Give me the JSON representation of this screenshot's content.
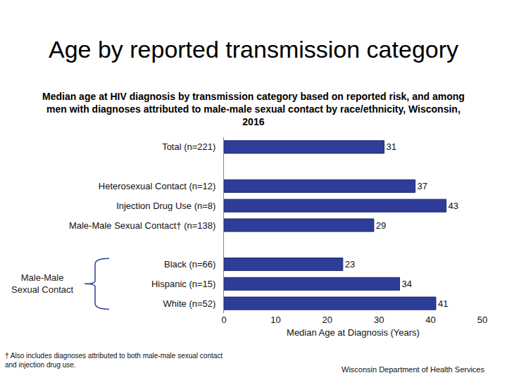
{
  "chart_data": {
    "type": "bar",
    "orientation": "horizontal",
    "title": "Age by reported transmission category",
    "subtitle": [
      "Median age at HIV diagnosis by transmission category based on reported risk, and among",
      "men with diagnoses attributed to male-male sexual contact by race/ethnicity, Wisconsin,",
      "2016"
    ],
    "x_label": "Median Age at Diagnosis (Years)",
    "categories": [
      "Total (n=221)",
      null,
      "Heterosexual Contact (n=12)",
      "Injection Drug Use (n=8)",
      "Male-Male Sexual Contact† (n=138)",
      null,
      "Black (n=66)",
      "Hispanic (n=15)",
      "White (n=52)"
    ],
    "values": [
      31,
      null,
      37,
      43,
      29,
      null,
      23,
      34,
      41
    ],
    "color": "#2e3d98",
    "data_labels": true,
    "grid": false,
    "xlim": [
      0,
      50
    ],
    "xticks": [
      0,
      10,
      20,
      30,
      40,
      50
    ],
    "bracket_label": "Male-Male Sexual Contact",
    "footnote": [
      "† Also includes diagnoses attributed to both male-male sexual contact",
      "and injection drug use."
    ],
    "source": "Wisconsin Department of Health Services"
  }
}
